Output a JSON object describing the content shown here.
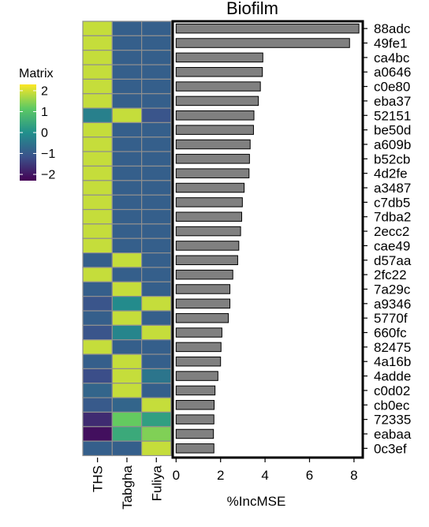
{
  "chart_data": [
    {
      "type": "heatmap",
      "legend": {
        "title": "Matrix",
        "ticks": [
          2,
          1,
          0,
          -1,
          -2
        ],
        "tick_labels": [
          "2",
          "1",
          "0",
          "−1",
          "−2"
        ],
        "range": [
          -2.3,
          2.3
        ],
        "placement": "left",
        "colors": [
          "#440154",
          "#3b528b",
          "#21908c",
          "#5dc963",
          "#fde725"
        ]
      },
      "columns": [
        "THS",
        "Tabgha",
        "Fuliya"
      ],
      "rows": [
        "88adc",
        "49fe1",
        "ca4bc",
        "a0646",
        "c0e80",
        "eba37",
        "52151",
        "be50d",
        "a609b",
        "b52cb",
        "4d2fe",
        "a3487",
        "c7db5",
        "7dba2",
        "2ecc2",
        "cae49",
        "d57aa",
        "2fc22",
        "7a29c",
        "a9346",
        "5770f",
        "660fc",
        "82475",
        "4a16b",
        "4adde",
        "c0d02",
        "cb0ec",
        "72335",
        "eabaa",
        "0c3ef"
      ],
      "values": [
        [
          1.9,
          -0.9,
          -0.9
        ],
        [
          1.9,
          -0.9,
          -0.9
        ],
        [
          1.9,
          -0.9,
          -0.9
        ],
        [
          1.9,
          -0.9,
          -0.9
        ],
        [
          1.9,
          -0.9,
          -0.9
        ],
        [
          1.9,
          -0.9,
          -0.9
        ],
        [
          -0.3,
          1.9,
          -1.1
        ],
        [
          1.9,
          -0.9,
          -0.9
        ],
        [
          1.9,
          -0.9,
          -0.9
        ],
        [
          1.9,
          -0.9,
          -0.9
        ],
        [
          1.9,
          -0.9,
          -0.9
        ],
        [
          1.9,
          -0.9,
          -0.9
        ],
        [
          1.9,
          -0.9,
          -0.9
        ],
        [
          1.9,
          -0.9,
          -0.9
        ],
        [
          1.9,
          -0.9,
          -0.9
        ],
        [
          1.9,
          -0.9,
          -0.9
        ],
        [
          -0.9,
          1.9,
          -0.9
        ],
        [
          1.9,
          -0.9,
          -0.9
        ],
        [
          -0.9,
          1.9,
          -0.9
        ],
        [
          -1.1,
          -0.1,
          1.9
        ],
        [
          -0.9,
          1.9,
          -0.9
        ],
        [
          -1.1,
          -0.2,
          1.9
        ],
        [
          1.9,
          -0.9,
          -0.9
        ],
        [
          -0.9,
          1.9,
          -0.9
        ],
        [
          -1.2,
          1.9,
          -0.5
        ],
        [
          -0.8,
          1.9,
          -0.9
        ],
        [
          -1.0,
          -0.8,
          1.9
        ],
        [
          -1.7,
          1.2,
          0.3
        ],
        [
          -2.1,
          0.5,
          1.4
        ],
        [
          -0.9,
          -0.9,
          1.9
        ]
      ]
    },
    {
      "type": "bar",
      "orientation": "horizontal",
      "title": "Biofilm",
      "xlabel": "%IncMSE",
      "ylabel": "",
      "xlim": [
        -0.1,
        8.6
      ],
      "xticks": [
        0,
        2,
        4,
        6,
        8
      ],
      "categories": [
        "88adc",
        "49fe1",
        "ca4bc",
        "a0646",
        "c0e80",
        "eba37",
        "52151",
        "be50d",
        "a609b",
        "b52cb",
        "4d2fe",
        "a3487",
        "c7db5",
        "7dba2",
        "2ecc2",
        "cae49",
        "d57aa",
        "2fc22",
        "7a29c",
        "a9346",
        "5770f",
        "660fc",
        "82475",
        "4a16b",
        "4adde",
        "c0d02",
        "cb0ec",
        "72335",
        "eabaa",
        "0c3ef"
      ],
      "values": [
        8.22,
        7.8,
        3.9,
        3.88,
        3.79,
        3.7,
        3.5,
        3.48,
        3.33,
        3.3,
        3.28,
        3.06,
        2.98,
        2.95,
        2.9,
        2.82,
        2.77,
        2.55,
        2.42,
        2.42,
        2.35,
        2.06,
        2.02,
        2.0,
        1.88,
        1.75,
        1.71,
        1.7,
        1.68,
        1.7
      ],
      "bar_color": "#808080",
      "grid": false
    }
  ]
}
